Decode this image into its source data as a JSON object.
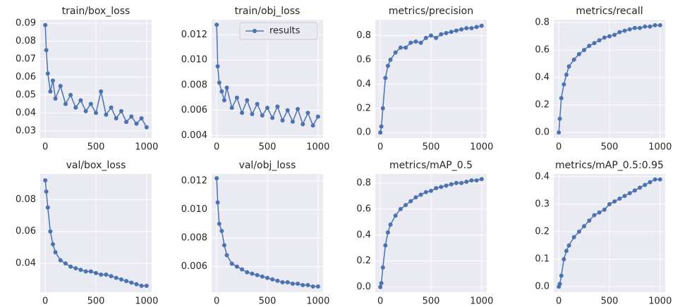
{
  "chart_data": [
    {
      "type": "line",
      "title": "train/box_loss",
      "x": [
        0,
        10,
        25,
        50,
        75,
        100,
        150,
        200,
        250,
        300,
        350,
        400,
        450,
        500,
        550,
        600,
        650,
        700,
        750,
        800,
        850,
        900,
        950,
        1000
      ],
      "series": [
        {
          "name": "results",
          "color": "#4c72b0",
          "values": [
            0.089,
            0.075,
            0.062,
            0.052,
            0.058,
            0.048,
            0.055,
            0.045,
            0.05,
            0.043,
            0.047,
            0.041,
            0.045,
            0.04,
            0.052,
            0.039,
            0.043,
            0.037,
            0.041,
            0.035,
            0.038,
            0.034,
            0.037,
            0.032
          ]
        }
      ],
      "xlim": [
        -50,
        1050
      ],
      "xticks": [
        0,
        500,
        1000
      ],
      "ylim": [
        0.026,
        0.092
      ],
      "yticks": [
        0.03,
        0.04,
        0.05,
        0.06,
        0.07,
        0.08,
        0.09
      ],
      "grid": true
    },
    {
      "type": "line",
      "title": "train/obj_loss",
      "x": [
        0,
        10,
        25,
        50,
        75,
        100,
        150,
        200,
        250,
        300,
        350,
        400,
        450,
        500,
        550,
        600,
        650,
        700,
        750,
        800,
        850,
        900,
        950,
        1000
      ],
      "series": [
        {
          "name": "results",
          "color": "#4c72b0",
          "values": [
            0.0128,
            0.0095,
            0.0082,
            0.0075,
            0.0068,
            0.0078,
            0.0062,
            0.007,
            0.0058,
            0.0068,
            0.0057,
            0.0065,
            0.0056,
            0.0062,
            0.0054,
            0.0063,
            0.0052,
            0.006,
            0.0051,
            0.0061,
            0.0049,
            0.0058,
            0.0048,
            0.0055
          ]
        }
      ],
      "xlim": [
        -50,
        1050
      ],
      "xticks": [
        0,
        500,
        1000
      ],
      "ylim": [
        0.0038,
        0.0132
      ],
      "yticks": [
        0.004,
        0.006,
        0.008,
        {
          "value": 0.01,
          "label": "0.010"
        },
        0.012
      ],
      "grid": true,
      "legend": "upper right"
    },
    {
      "type": "line",
      "title": "metrics/precision",
      "x": [
        0,
        10,
        25,
        50,
        75,
        100,
        150,
        200,
        250,
        300,
        350,
        400,
        450,
        500,
        550,
        600,
        650,
        700,
        750,
        800,
        850,
        900,
        950,
        1000
      ],
      "series": [
        {
          "name": "results",
          "color": "#4c72b0",
          "values": [
            0,
            0.05,
            0.2,
            0.45,
            0.55,
            0.6,
            0.66,
            0.7,
            0.7,
            0.74,
            0.75,
            0.74,
            0.78,
            0.8,
            0.78,
            0.81,
            0.82,
            0.83,
            0.84,
            0.85,
            0.86,
            0.86,
            0.87,
            0.88
          ]
        }
      ],
      "xlim": [
        -50,
        1050
      ],
      "xticks": [
        0,
        500,
        1000
      ],
      "ylim": [
        -0.045,
        0.93
      ],
      "yticks": [
        {
          "value": 0,
          "label": "0.0"
        },
        0.2,
        0.4,
        0.6,
        0.8
      ],
      "grid": true
    },
    {
      "type": "line",
      "title": "metrics/recall",
      "x": [
        0,
        10,
        25,
        50,
        75,
        100,
        150,
        200,
        250,
        300,
        350,
        400,
        450,
        500,
        550,
        600,
        650,
        700,
        750,
        800,
        850,
        900,
        950,
        1000
      ],
      "series": [
        {
          "name": "results",
          "color": "#4c72b0",
          "values": [
            0,
            0.1,
            0.25,
            0.35,
            0.42,
            0.48,
            0.53,
            0.57,
            0.6,
            0.63,
            0.65,
            0.67,
            0.69,
            0.7,
            0.71,
            0.73,
            0.74,
            0.75,
            0.76,
            0.76,
            0.77,
            0.77,
            0.78,
            0.78
          ]
        }
      ],
      "xlim": [
        -50,
        1050
      ],
      "xticks": [
        0,
        500,
        1000
      ],
      "ylim": [
        -0.04,
        0.82
      ],
      "yticks": [
        {
          "value": 0,
          "label": "0.0"
        },
        0.2,
        0.4,
        0.6,
        0.8
      ],
      "grid": true
    },
    {
      "type": "line",
      "title": "val/box_loss",
      "x": [
        0,
        10,
        25,
        50,
        75,
        100,
        150,
        200,
        250,
        300,
        350,
        400,
        450,
        500,
        550,
        600,
        650,
        700,
        750,
        800,
        850,
        900,
        950,
        1000
      ],
      "series": [
        {
          "name": "results",
          "color": "#4c72b0",
          "values": [
            0.092,
            0.085,
            0.075,
            0.06,
            0.052,
            0.047,
            0.042,
            0.04,
            0.038,
            0.037,
            0.036,
            0.035,
            0.035,
            0.034,
            0.033,
            0.033,
            0.032,
            0.031,
            0.03,
            0.029,
            0.028,
            0.027,
            0.026,
            0.026
          ]
        }
      ],
      "xlim": [
        -50,
        1050
      ],
      "xticks": [
        0,
        500,
        1000
      ],
      "ylim": [
        0.022,
        0.096
      ],
      "yticks": [
        0.04,
        0.06,
        0.08
      ],
      "grid": true
    },
    {
      "type": "line",
      "title": "val/obj_loss",
      "x": [
        0,
        10,
        25,
        50,
        75,
        100,
        150,
        200,
        250,
        300,
        350,
        400,
        450,
        500,
        550,
        600,
        650,
        700,
        750,
        800,
        850,
        900,
        950,
        1000
      ],
      "series": [
        {
          "name": "results",
          "color": "#4c72b0",
          "values": [
            0.0122,
            0.0105,
            0.009,
            0.0085,
            0.0075,
            0.0068,
            0.0062,
            0.006,
            0.0058,
            0.0056,
            0.0055,
            0.0054,
            0.0053,
            0.0052,
            0.0051,
            0.005,
            0.0049,
            0.0049,
            0.0048,
            0.0048,
            0.0047,
            0.0047,
            0.0046,
            0.0046
          ]
        }
      ],
      "xlim": [
        -50,
        1050
      ],
      "xticks": [
        0,
        500,
        1000
      ],
      "ylim": [
        0.0042,
        0.0125
      ],
      "yticks": [
        0.006,
        0.008,
        {
          "value": 0.01,
          "label": "0.010"
        },
        0.012
      ],
      "grid": true
    },
    {
      "type": "line",
      "title": "metrics/mAP_0.5",
      "x": [
        0,
        10,
        25,
        50,
        75,
        100,
        150,
        200,
        250,
        300,
        350,
        400,
        450,
        500,
        550,
        600,
        650,
        700,
        750,
        800,
        850,
        900,
        950,
        1000
      ],
      "series": [
        {
          "name": "results",
          "color": "#4c72b0",
          "values": [
            0,
            0.03,
            0.15,
            0.32,
            0.42,
            0.48,
            0.55,
            0.6,
            0.63,
            0.66,
            0.69,
            0.71,
            0.73,
            0.74,
            0.76,
            0.77,
            0.78,
            0.79,
            0.8,
            0.8,
            0.81,
            0.82,
            0.82,
            0.83
          ]
        }
      ],
      "xlim": [
        -50,
        1050
      ],
      "xticks": [
        0,
        500,
        1000
      ],
      "ylim": [
        -0.04,
        0.87
      ],
      "yticks": [
        {
          "value": 0,
          "label": "0.0"
        },
        0.2,
        0.4,
        0.6,
        0.8
      ],
      "grid": true
    },
    {
      "type": "line",
      "title": "metrics/mAP_0.5:0.95",
      "x": [
        0,
        10,
        25,
        50,
        75,
        100,
        150,
        200,
        250,
        300,
        350,
        400,
        450,
        500,
        550,
        600,
        650,
        700,
        750,
        800,
        850,
        900,
        950,
        1000
      ],
      "series": [
        {
          "name": "results",
          "color": "#4c72b0",
          "values": [
            0,
            0.01,
            0.04,
            0.1,
            0.13,
            0.15,
            0.18,
            0.2,
            0.22,
            0.24,
            0.26,
            0.27,
            0.28,
            0.3,
            0.31,
            0.32,
            0.33,
            0.34,
            0.35,
            0.36,
            0.37,
            0.38,
            0.39,
            0.39
          ]
        }
      ],
      "xlim": [
        -50,
        1050
      ],
      "xticks": [
        0,
        500,
        1000
      ],
      "ylim": [
        -0.02,
        0.41
      ],
      "yticks": [
        {
          "value": 0,
          "label": "0.0"
        },
        0.1,
        0.2,
        0.3,
        0.4
      ],
      "grid": true
    }
  ]
}
